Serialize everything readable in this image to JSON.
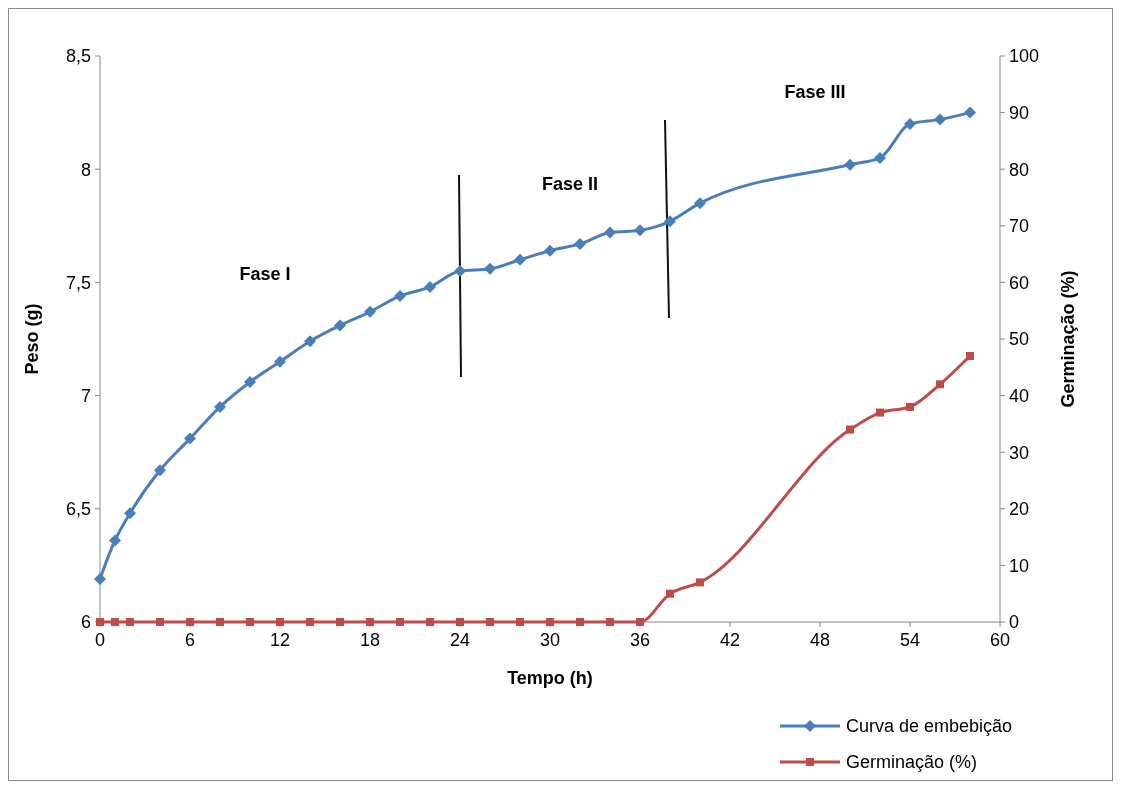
{
  "chart_data": {
    "type": "line",
    "xlabel": "Tempo (h)",
    "ylabel": "Peso (g)",
    "y2label": "Germinação (%)",
    "xlim": [
      0,
      60
    ],
    "xticks": [
      0,
      6,
      12,
      18,
      24,
      30,
      36,
      42,
      48,
      54,
      60
    ],
    "ylim": [
      6,
      8.5
    ],
    "yticks": [
      {
        "value": 6,
        "label": "6"
      },
      {
        "value": 6.5,
        "label": "6,5"
      },
      {
        "value": 7,
        "label": "7"
      },
      {
        "value": 7.5,
        "label": "7,5"
      },
      {
        "value": 8,
        "label": "8"
      },
      {
        "value": 8.5,
        "label": "8,5"
      }
    ],
    "y2lim": [
      0,
      100
    ],
    "y2ticks": [
      0,
      10,
      20,
      30,
      40,
      50,
      60,
      70,
      80,
      90,
      100
    ],
    "grid": false,
    "legend": "bottom right",
    "series": [
      {
        "name": "Curva de embebição",
        "color": "#4a7ebb",
        "marker": "diamond",
        "x": [
          0,
          1,
          2,
          4,
          6,
          8,
          10,
          12,
          14,
          16,
          18,
          20,
          22,
          24,
          26,
          28,
          30,
          32,
          34,
          36,
          38,
          40,
          50,
          52,
          54,
          56,
          58
        ],
        "values": [
          6.19,
          6.36,
          6.48,
          6.67,
          6.81,
          6.95,
          7.06,
          7.15,
          7.24,
          7.31,
          7.37,
          7.44,
          7.48,
          7.55,
          7.56,
          7.6,
          7.64,
          7.67,
          7.72,
          7.73,
          7.77,
          7.85,
          8.02,
          8.05,
          8.2,
          8.22,
          8.25
        ]
      },
      {
        "name": "Germinação (%)",
        "color": "#be4b48",
        "marker": "square",
        "axis": "y2",
        "x": [
          0,
          1,
          2,
          4,
          6,
          8,
          10,
          12,
          14,
          16,
          18,
          20,
          22,
          24,
          26,
          28,
          30,
          32,
          34,
          36,
          38,
          40,
          50,
          52,
          54,
          56,
          58
        ],
        "values": [
          0,
          0,
          0,
          0,
          0,
          0,
          0,
          0,
          0,
          0,
          0,
          0,
          0,
          0,
          0,
          0,
          0,
          0,
          0,
          0,
          5,
          7,
          34,
          37,
          38,
          42,
          47
        ]
      }
    ],
    "annotations": [
      "Fase I",
      "Fase II",
      "Fase III"
    ]
  }
}
